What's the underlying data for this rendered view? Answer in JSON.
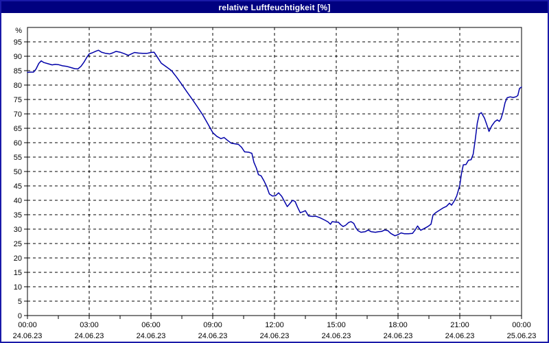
{
  "window": {
    "title": "relative Luftfeuchtigkeit [%]"
  },
  "colors": {
    "frame_border": "#1a1aa8",
    "titlebar_bg": "#000080",
    "titlebar_text": "#ffffff",
    "chart_bg": "#ffffff",
    "plot_border": "#000000",
    "grid": "#000000",
    "tick_text": "#000000",
    "line": "#0000a8"
  },
  "chart_data": {
    "type": "line",
    "title": "relative Luftfeuchtigkeit [%]",
    "y_unit_label": "%",
    "xlabel": "",
    "ylabel": "",
    "xlim_hours": [
      0,
      24
    ],
    "ylim": [
      0,
      100
    ],
    "y_tick_step": 5,
    "y_tick_max": 95,
    "x_minor_tick_interval_hours": 1.5,
    "grid": "dashed",
    "legend_position": "none",
    "x_major_ticks": [
      {
        "hour": 0,
        "time": "00:00",
        "date": "24.06.23"
      },
      {
        "hour": 3,
        "time": "03:00",
        "date": "24.06.23"
      },
      {
        "hour": 6,
        "time": "06:00",
        "date": "24.06.23"
      },
      {
        "hour": 9,
        "time": "09:00",
        "date": "24.06.23"
      },
      {
        "hour": 12,
        "time": "12:00",
        "date": "24.06.23"
      },
      {
        "hour": 15,
        "time": "15:00",
        "date": "24.06.23"
      },
      {
        "hour": 18,
        "time": "18:00",
        "date": "24.06.23"
      },
      {
        "hour": 21,
        "time": "21:00",
        "date": "24.06.23"
      },
      {
        "hour": 24,
        "time": "00:00",
        "date": "25.06.23"
      }
    ],
    "series": [
      {
        "name": "relative Luftfeuchtigkeit",
        "color": "#0000a8",
        "points_hour_value": [
          [
            0.0,
            84.4
          ],
          [
            0.15,
            84.5
          ],
          [
            0.3,
            84.5
          ],
          [
            0.42,
            85.6
          ],
          [
            0.55,
            87.5
          ],
          [
            0.67,
            88.4
          ],
          [
            0.8,
            87.8
          ],
          [
            1.0,
            87.4
          ],
          [
            1.2,
            87.0
          ],
          [
            1.35,
            87.2
          ],
          [
            1.5,
            87.1
          ],
          [
            1.7,
            86.7
          ],
          [
            1.9,
            86.5
          ],
          [
            2.1,
            86.1
          ],
          [
            2.3,
            85.7
          ],
          [
            2.45,
            85.6
          ],
          [
            2.6,
            86.5
          ],
          [
            2.75,
            88.0
          ],
          [
            2.9,
            89.8
          ],
          [
            3.0,
            90.8
          ],
          [
            3.15,
            91.2
          ],
          [
            3.3,
            91.7
          ],
          [
            3.45,
            92.1
          ],
          [
            3.6,
            91.4
          ],
          [
            3.8,
            91.0
          ],
          [
            4.0,
            90.8
          ],
          [
            4.15,
            91.2
          ],
          [
            4.3,
            91.7
          ],
          [
            4.5,
            91.4
          ],
          [
            4.7,
            90.9
          ],
          [
            4.9,
            90.3
          ],
          [
            5.05,
            90.8
          ],
          [
            5.2,
            91.3
          ],
          [
            5.4,
            91.1
          ],
          [
            5.6,
            91.0
          ],
          [
            5.8,
            91.0
          ],
          [
            6.0,
            91.3
          ],
          [
            6.15,
            91.4
          ],
          [
            6.3,
            89.8
          ],
          [
            6.5,
            87.6
          ],
          [
            6.75,
            86.3
          ],
          [
            7.0,
            85.0
          ],
          [
            7.25,
            82.7
          ],
          [
            7.5,
            80.2
          ],
          [
            7.75,
            77.6
          ],
          [
            8.0,
            75.1
          ],
          [
            8.25,
            72.5
          ],
          [
            8.5,
            69.8
          ],
          [
            8.75,
            66.7
          ],
          [
            9.0,
            63.5
          ],
          [
            9.2,
            62.2
          ],
          [
            9.4,
            61.4
          ],
          [
            9.55,
            61.8
          ],
          [
            9.7,
            60.9
          ],
          [
            9.9,
            59.8
          ],
          [
            10.1,
            59.6
          ],
          [
            10.25,
            59.4
          ],
          [
            10.4,
            58.4
          ],
          [
            10.55,
            56.8
          ],
          [
            10.75,
            56.7
          ],
          [
            10.9,
            56.3
          ],
          [
            11.0,
            53.2
          ],
          [
            11.12,
            51.2
          ],
          [
            11.22,
            48.9
          ],
          [
            11.35,
            48.5
          ],
          [
            11.5,
            46.6
          ],
          [
            11.62,
            44.8
          ],
          [
            11.75,
            42.2
          ],
          [
            11.9,
            41.5
          ],
          [
            12.05,
            41.6
          ],
          [
            12.2,
            42.6
          ],
          [
            12.35,
            41.4
          ],
          [
            12.5,
            39.4
          ],
          [
            12.62,
            37.8
          ],
          [
            12.75,
            38.9
          ],
          [
            12.88,
            40.0
          ],
          [
            13.0,
            39.6
          ],
          [
            13.12,
            37.6
          ],
          [
            13.25,
            35.7
          ],
          [
            13.4,
            36.1
          ],
          [
            13.5,
            36.4
          ],
          [
            13.65,
            34.6
          ],
          [
            13.85,
            34.4
          ],
          [
            14.0,
            34.5
          ],
          [
            14.22,
            33.9
          ],
          [
            14.45,
            33.1
          ],
          [
            14.6,
            32.5
          ],
          [
            14.72,
            31.7
          ],
          [
            14.8,
            32.6
          ],
          [
            15.0,
            32.4
          ],
          [
            15.1,
            32.4
          ],
          [
            15.22,
            31.5
          ],
          [
            15.33,
            30.9
          ],
          [
            15.45,
            31.3
          ],
          [
            15.6,
            32.3
          ],
          [
            15.72,
            32.6
          ],
          [
            15.85,
            32.0
          ],
          [
            15.95,
            30.5
          ],
          [
            16.05,
            29.5
          ],
          [
            16.2,
            28.9
          ],
          [
            16.4,
            29.1
          ],
          [
            16.55,
            29.7
          ],
          [
            16.7,
            29.1
          ],
          [
            16.9,
            28.9
          ],
          [
            17.05,
            29.1
          ],
          [
            17.2,
            29.2
          ],
          [
            17.35,
            29.7
          ],
          [
            17.5,
            29.5
          ],
          [
            17.65,
            28.5
          ],
          [
            17.85,
            27.7
          ],
          [
            18.0,
            28.1
          ],
          [
            18.15,
            28.7
          ],
          [
            18.3,
            28.4
          ],
          [
            18.5,
            28.4
          ],
          [
            18.7,
            28.5
          ],
          [
            18.85,
            29.9
          ],
          [
            18.95,
            31.1
          ],
          [
            19.1,
            29.6
          ],
          [
            19.3,
            30.3
          ],
          [
            19.45,
            30.9
          ],
          [
            19.6,
            31.7
          ],
          [
            19.7,
            34.9
          ],
          [
            19.85,
            35.8
          ],
          [
            20.0,
            36.5
          ],
          [
            20.2,
            37.4
          ],
          [
            20.35,
            37.9
          ],
          [
            20.5,
            39.0
          ],
          [
            20.6,
            38.3
          ],
          [
            20.75,
            40.0
          ],
          [
            20.85,
            41.5
          ],
          [
            21.0,
            45.2
          ],
          [
            21.08,
            49.2
          ],
          [
            21.17,
            52.3
          ],
          [
            21.3,
            52.4
          ],
          [
            21.42,
            53.9
          ],
          [
            21.55,
            54.1
          ],
          [
            21.65,
            56.0
          ],
          [
            21.75,
            61.0
          ],
          [
            21.85,
            66.8
          ],
          [
            21.95,
            70.0
          ],
          [
            22.05,
            70.4
          ],
          [
            22.2,
            68.5
          ],
          [
            22.3,
            66.5
          ],
          [
            22.42,
            63.9
          ],
          [
            22.55,
            65.8
          ],
          [
            22.7,
            67.3
          ],
          [
            22.82,
            67.9
          ],
          [
            22.92,
            67.4
          ],
          [
            23.0,
            68.3
          ],
          [
            23.1,
            70.7
          ],
          [
            23.2,
            73.9
          ],
          [
            23.3,
            75.6
          ],
          [
            23.45,
            75.9
          ],
          [
            23.6,
            75.7
          ],
          [
            23.75,
            76.0
          ],
          [
            23.82,
            76.4
          ],
          [
            23.9,
            78.8
          ],
          [
            24.0,
            79.3
          ]
        ]
      }
    ]
  }
}
